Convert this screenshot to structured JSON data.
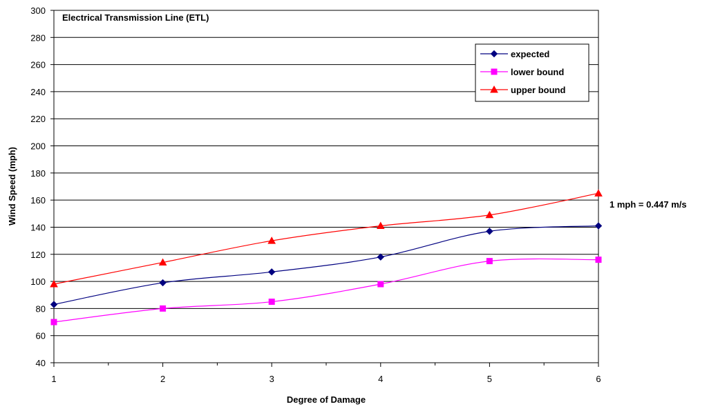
{
  "chart_data": {
    "type": "line",
    "title": "Electrical Transmission Line (ETL)",
    "xlabel": "Degree of Damage",
    "ylabel": "Wind Speed (mph)",
    "x": [
      1,
      2,
      3,
      4,
      5,
      6
    ],
    "xlim": [
      1,
      6
    ],
    "ylim": [
      40,
      300
    ],
    "yticks": [
      40,
      60,
      80,
      100,
      120,
      140,
      160,
      180,
      200,
      220,
      240,
      260,
      280,
      300
    ],
    "grid": "horizontal",
    "legend_position": "top-right",
    "series": [
      {
        "name": "expected",
        "color": "#000080",
        "marker": "diamond",
        "values": [
          83,
          99,
          107,
          118,
          137,
          141
        ]
      },
      {
        "name": "lower bound",
        "color": "#ff00ff",
        "marker": "square",
        "values": [
          70,
          80,
          85,
          98,
          115,
          116
        ]
      },
      {
        "name": "upper bound",
        "color": "#ff0000",
        "marker": "triangle",
        "values": [
          98,
          114,
          130,
          141,
          149,
          165
        ]
      }
    ],
    "annotation": "1 mph = 0.447 m/s"
  }
}
